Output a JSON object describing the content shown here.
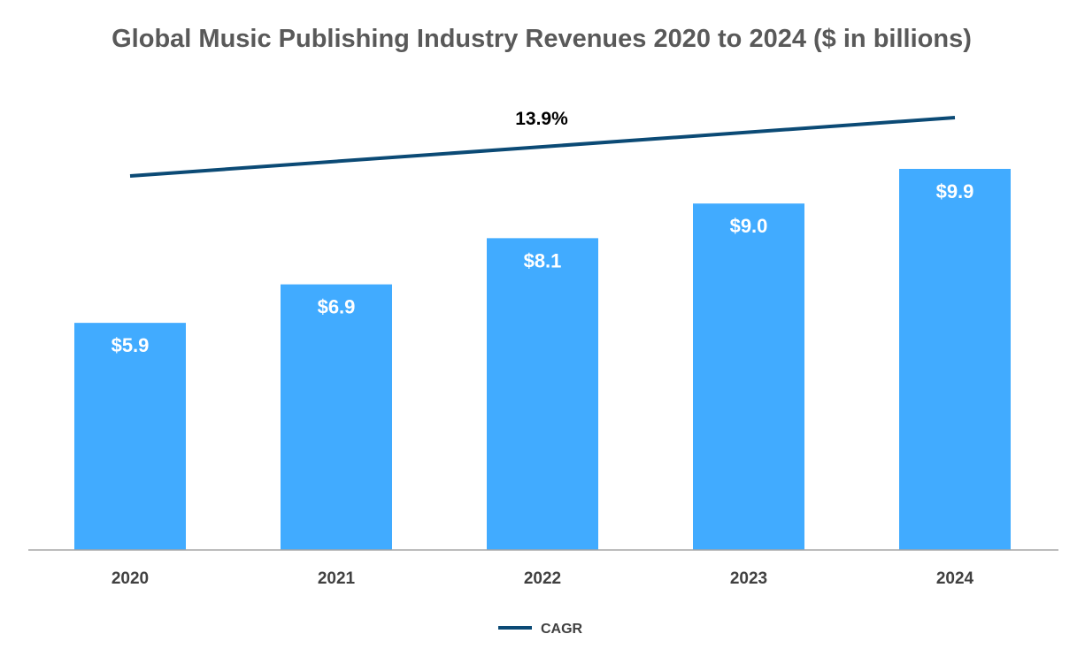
{
  "chart_data": {
    "type": "bar",
    "title": "Global Music Publishing Industry Revenues 2020 to 2024 ($ in billions)",
    "categories": [
      "2020",
      "2021",
      "2022",
      "2023",
      "2024"
    ],
    "values": [
      5.9,
      6.9,
      8.1,
      9.0,
      9.9
    ],
    "value_labels": [
      "$5.9",
      "$6.9",
      "$8.1",
      "$9.0",
      "$9.9"
    ],
    "xlabel": "",
    "ylabel": "",
    "ylim": [
      0,
      9.9
    ],
    "grid": false,
    "legend_position": "bottom-center",
    "bar_color": "#41ABFF",
    "annotation": {
      "type": "line",
      "name": "CAGR",
      "label": "13.9%",
      "color": "#0B4A75"
    },
    "legend": [
      {
        "name": "CAGR",
        "color": "#0B4A75"
      }
    ]
  }
}
